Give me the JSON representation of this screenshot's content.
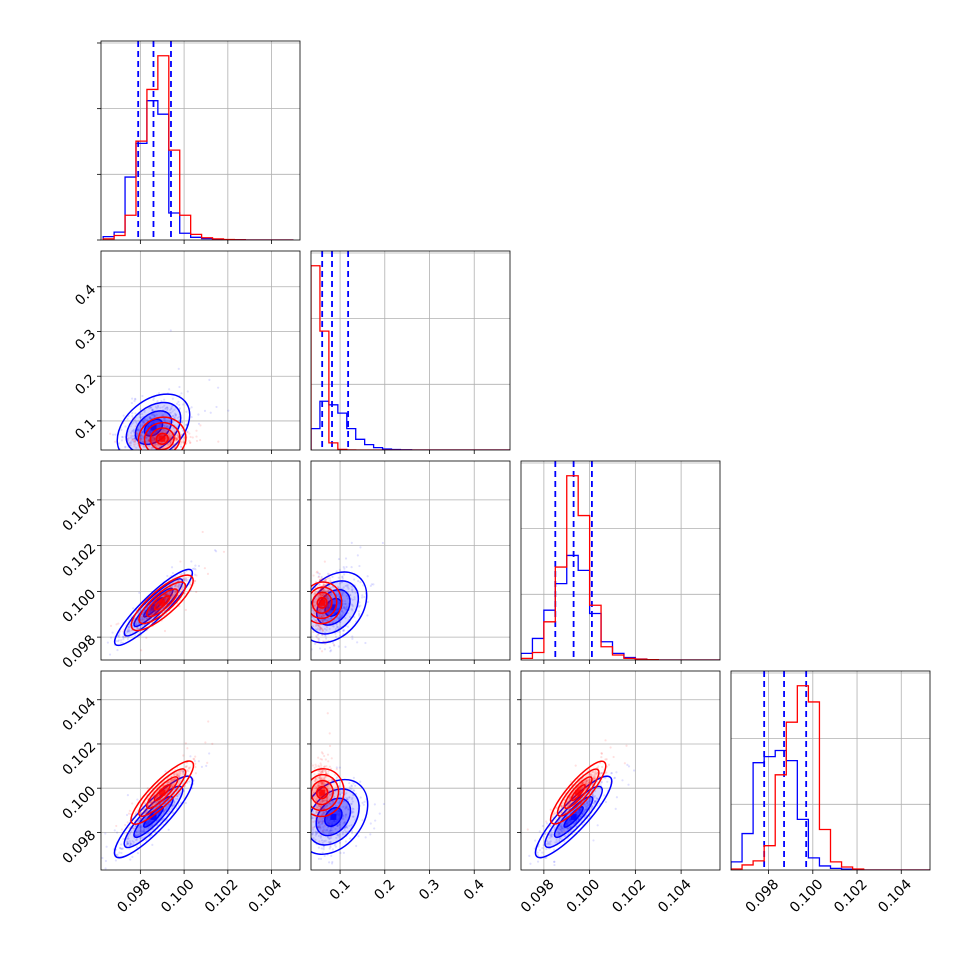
{
  "colors": {
    "blue": "#0000ff",
    "red": "#ff0000",
    "grid": "#b0b0b0"
  },
  "chart_data": {
    "type": "corner",
    "grid": true,
    "parameters": [
      {
        "range": [
          0.0962,
          0.1053
        ],
        "ticks": [
          0.098,
          0.1,
          0.102,
          0.104
        ],
        "tick_labels": [
          "0.098",
          "0.100",
          "0.102",
          "0.104"
        ]
      },
      {
        "range": [
          0.035,
          0.48
        ],
        "ticks": [
          0.1,
          0.2,
          0.3,
          0.4
        ],
        "tick_labels": [
          "0.1",
          "0.2",
          "0.3",
          "0.4"
        ]
      },
      {
        "range": [
          0.097,
          0.1057
        ],
        "ticks": [
          0.098,
          0.1,
          0.102,
          0.104
        ],
        "tick_labels": [
          "0.098",
          "0.100",
          "0.102",
          "0.104"
        ]
      },
      {
        "range": [
          0.0963,
          0.1053
        ],
        "ticks": [
          0.098,
          0.1,
          0.102,
          0.104
        ],
        "tick_labels": [
          "0.098",
          "0.100",
          "0.102",
          "0.104"
        ]
      }
    ],
    "series": [
      {
        "color": "#0000ff",
        "quantiles": [
          [
            0.0979,
            0.0986,
            0.0994
          ],
          [
            0.06,
            0.082,
            0.118
          ],
          [
            0.0985,
            0.0993,
            0.1001
          ],
          [
            0.0978,
            0.0987,
            0.0997
          ]
        ],
        "hist": [
          {
            "edges": [
              0.0963,
              0.0968,
              0.0973,
              0.0978,
              0.0983,
              0.0988,
              0.0993,
              0.0998,
              0.1003,
              0.1008,
              0.1013,
              0.1018,
              0.1023,
              0.1028,
              0.105
            ],
            "counts": [
              15,
              35,
              280,
              430,
              620,
              560,
              120,
              30,
              12,
              6,
              3,
              1,
              1,
              0
            ]
          },
          {
            "edges": [
              0.035,
              0.055,
              0.075,
              0.095,
              0.115,
              0.135,
              0.155,
              0.175,
              0.195,
              0.215,
              0.235,
              0.26,
              0.48
            ],
            "counts": [
              180,
              410,
              380,
              310,
              180,
              90,
              45,
              20,
              8,
              4,
              2,
              0
            ]
          },
          {
            "edges": [
              0.097,
              0.0975,
              0.098,
              0.0985,
              0.099,
              0.0995,
              0.1,
              0.1005,
              0.101,
              0.1015,
              0.102,
              0.1025,
              0.103,
              0.1057
            ],
            "counts": [
              40,
              130,
              300,
              460,
              630,
              540,
              280,
              110,
              40,
              15,
              6,
              2,
              0
            ]
          },
          {
            "edges": [
              0.0963,
              0.0968,
              0.0973,
              0.0978,
              0.0983,
              0.0988,
              0.0993,
              0.0998,
              0.1003,
              0.1008,
              0.1013,
              0.1018,
              0.1023,
              0.1053
            ],
            "counts": [
              40,
              180,
              530,
              560,
              590,
              540,
              250,
              60,
              20,
              8,
              4,
              1,
              0
            ]
          }
        ],
        "dist": [
          {
            "mu": [
              0.0986,
              0.085
            ],
            "sd": [
              0.00075,
              0.03
            ],
            "rho": 0.35
          },
          {
            "mu": [
              0.0986,
              0.0993
            ],
            "sd": [
              0.00075,
              0.0007
            ],
            "rho": 0.93
          },
          {
            "mu": [
              0.085,
              0.0993
            ],
            "sd": [
              0.03,
              0.0007
            ],
            "rho": 0.3
          },
          {
            "mu": [
              0.0986,
              0.0987
            ],
            "sd": [
              0.00075,
              0.00078
            ],
            "rho": 0.9
          },
          {
            "mu": [
              0.085,
              0.0987
            ],
            "sd": [
              0.03,
              0.00078
            ],
            "rho": 0.3
          },
          {
            "mu": [
              0.0993,
              0.0987
            ],
            "sd": [
              0.0007,
              0.00078
            ],
            "rho": 0.9
          }
        ]
      },
      {
        "color": "#ff0000",
        "hist": [
          {
            "edges": [
              0.0963,
              0.0968,
              0.0973,
              0.0978,
              0.0983,
              0.0988,
              0.0993,
              0.0998,
              0.1003,
              0.1008,
              0.1013,
              0.1018,
              0.1023,
              0.1028,
              0.105
            ],
            "counts": [
              5,
              20,
              110,
              440,
              670,
              820,
              400,
              110,
              25,
              10,
              5,
              2,
              1,
              0
            ]
          },
          {
            "edges": [
              0.035,
              0.055,
              0.075,
              0.095,
              0.115,
              0.135,
              0.48
            ],
            "counts": [
              1550,
              1000,
              60,
              5,
              1,
              0
            ]
          },
          {
            "edges": [
              0.097,
              0.0975,
              0.098,
              0.0985,
              0.099,
              0.0995,
              0.1,
              0.1005,
              0.101,
              0.1015,
              0.102,
              0.1025,
              0.103,
              0.1057
            ],
            "counts": [
              10,
              45,
              230,
              560,
              1110,
              870,
              330,
              80,
              30,
              10,
              5,
              2,
              0
            ]
          },
          {
            "edges": [
              0.0963,
              0.0968,
              0.0973,
              0.0978,
              0.0983,
              0.0988,
              0.0993,
              0.0998,
              0.1003,
              0.1008,
              0.1013,
              0.1018,
              0.1023,
              0.1053
            ],
            "counts": [
              5,
              25,
              45,
              120,
              470,
              730,
              910,
              830,
              200,
              40,
              15,
              5,
              0
            ]
          }
        ],
        "dist": [
          {
            "mu": [
              0.099,
              0.06
            ],
            "sd": [
              0.0006,
              0.008
            ],
            "rho": 0.1
          },
          {
            "mu": [
              0.099,
              0.0995
            ],
            "sd": [
              0.0006,
              0.0005
            ],
            "rho": 0.85
          },
          {
            "mu": [
              0.06,
              0.0995
            ],
            "sd": [
              0.008,
              0.0005
            ],
            "rho": 0.1
          },
          {
            "mu": [
              0.099,
              0.0998
            ],
            "sd": [
              0.0006,
              0.0006
            ],
            "rho": 0.9
          },
          {
            "mu": [
              0.06,
              0.0998
            ],
            "sd": [
              0.008,
              0.0006
            ],
            "rho": 0.1
          },
          {
            "mu": [
              0.0995,
              0.0998
            ],
            "sd": [
              0.0005,
              0.0006
            ],
            "rho": 0.9
          }
        ]
      }
    ]
  }
}
